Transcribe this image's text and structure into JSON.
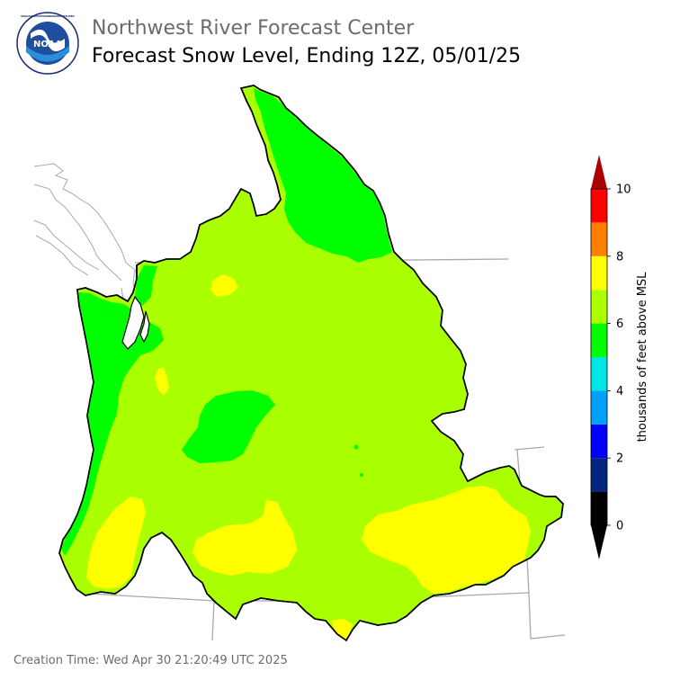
{
  "header": {
    "agency": "Northwest River Forecast Center",
    "product": "Forecast Snow Level, Ending 12Z, 05/01/25",
    "logo_text": "NOAA",
    "logo_ring_text": "NATIONAL OCEANIC AND ATMOSPHERIC ADMINISTRATION · U.S. DEPARTMENT OF COMMERCE"
  },
  "legend": {
    "title": "thousands of feet above MSL",
    "tick_labels": [
      "0",
      "2",
      "4",
      "6",
      "8",
      "10"
    ],
    "bins": [
      {
        "from": 0,
        "to": 1,
        "color": "#000000"
      },
      {
        "from": 1,
        "to": 2,
        "color": "#00267f"
      },
      {
        "from": 2,
        "to": 3,
        "color": "#0000ff"
      },
      {
        "from": 3,
        "to": 4,
        "color": "#00a0ff"
      },
      {
        "from": 4,
        "to": 5,
        "color": "#00e6e6"
      },
      {
        "from": 5,
        "to": 6,
        "color": "#00ff00"
      },
      {
        "from": 6,
        "to": 7,
        "color": "#aaff00"
      },
      {
        "from": 7,
        "to": 8,
        "color": "#ffff00"
      },
      {
        "from": 8,
        "to": 9,
        "color": "#ff8000"
      },
      {
        "from": 9,
        "to": 10,
        "color": "#ff0000"
      }
    ],
    "under_color": "#000000",
    "over_color": "#aa0000"
  },
  "map_colors": {
    "band_5_6": "#00ff00",
    "band_6_7": "#aaff00",
    "band_7_8": "#ffff00",
    "state_lines": "#a8a8a8",
    "basin_outline": "#000000"
  },
  "footer": {
    "creation_time": "Creation Time: Wed Apr 30 21:20:49 UTC 2025"
  }
}
